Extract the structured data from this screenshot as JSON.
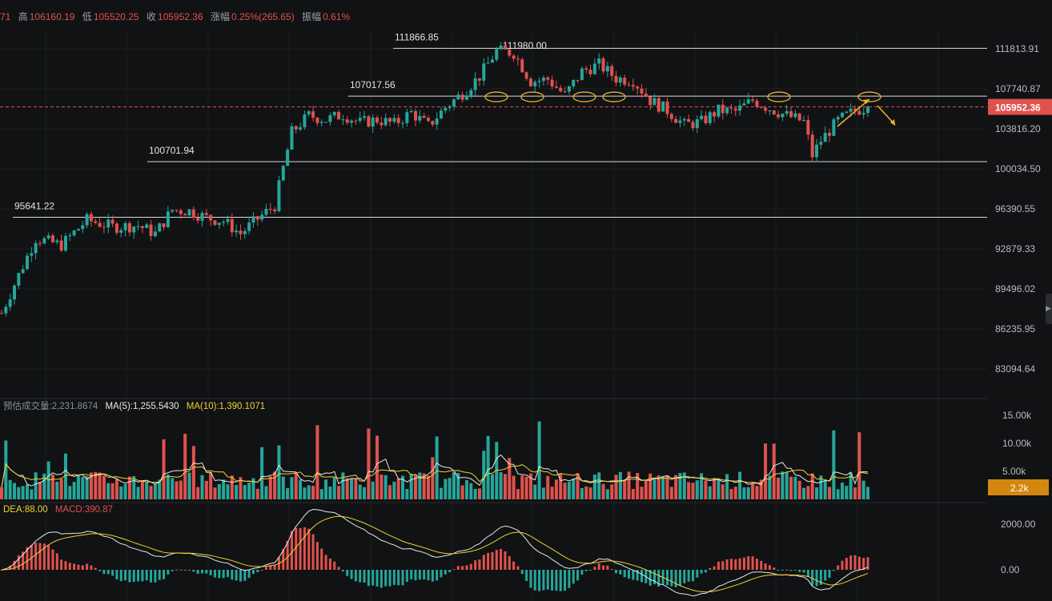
{
  "header": {
    "fragment": "71",
    "high_label": "高",
    "high": "106160.19",
    "low_label": "低",
    "low": "105520.25",
    "close_label": "收",
    "close": "105952.36",
    "change_label": "涨幅",
    "change": "0.25%(265.65)",
    "amplitude_label": "振幅",
    "amplitude": "0.61%"
  },
  "volume_legend": {
    "est_label": "预估成交量:2,231.8674",
    "ma5": "MA(5):1,255.5430",
    "ma10": "MA(10):1,390.1071"
  },
  "macd_legend": {
    "dea": "DEA:88.00",
    "macd": "MACD:390.87"
  },
  "colors": {
    "up": "#26a69a",
    "down": "#e0524e",
    "ma5": "#e8e8e8",
    "ma10": "#f0d232",
    "annotation": "#f0b429",
    "price_tag": "#e0524e",
    "volume_tag": "#d4870f"
  },
  "chart_data": {
    "type": "candlestick",
    "price_axis": {
      "ticks": [
        "111813.91",
        "107740.87",
        "103816.20",
        "100034.50",
        "96390.55",
        "92879.33",
        "89496.02",
        "86235.95",
        "83094.64"
      ],
      "current_price": "105952.36",
      "log_scale": true
    },
    "volume_axis": {
      "ticks": [
        "15.00k",
        "10.00k",
        "5.00k"
      ],
      "current": "2.2k"
    },
    "macd_axis": {
      "ticks": [
        "2000.00",
        "0.00"
      ]
    },
    "levels": [
      {
        "label": "111866.85",
        "value": 111866.85
      },
      {
        "label": "107017.56",
        "value": 107017.56
      },
      {
        "label": "100701.94",
        "value": 100701.94
      },
      {
        "label": "95641.22",
        "value": 95641.22
      }
    ],
    "peak_label": "111980.00",
    "price_path": [
      [
        0,
        87500
      ],
      [
        8,
        93800
      ],
      [
        14,
        93200
      ],
      [
        20,
        95400
      ],
      [
        26,
        94800
      ],
      [
        32,
        94900
      ],
      [
        36,
        94200
      ],
      [
        40,
        96300
      ],
      [
        44,
        96200
      ],
      [
        48,
        95600
      ],
      [
        52,
        95300
      ],
      [
        56,
        94200
      ],
      [
        60,
        95500
      ],
      [
        64,
        96700
      ],
      [
        68,
        103500
      ],
      [
        72,
        105100
      ],
      [
        76,
        104700
      ],
      [
        80,
        105200
      ],
      [
        84,
        104400
      ],
      [
        88,
        104700
      ],
      [
        92,
        104300
      ],
      [
        96,
        105400
      ],
      [
        100,
        104100
      ],
      [
        104,
        105900
      ],
      [
        108,
        107300
      ],
      [
        112,
        109000
      ],
      [
        116,
        111600
      ],
      [
        120,
        111400
      ],
      [
        124,
        108500
      ],
      [
        128,
        108700
      ],
      [
        132,
        107100
      ],
      [
        136,
        109500
      ],
      [
        140,
        110200
      ],
      [
        144,
        108800
      ],
      [
        148,
        108600
      ],
      [
        152,
        106600
      ],
      [
        156,
        105600
      ],
      [
        160,
        104200
      ],
      [
        164,
        104500
      ],
      [
        168,
        105600
      ],
      [
        172,
        105500
      ],
      [
        176,
        106600
      ],
      [
        180,
        105800
      ],
      [
        184,
        105100
      ],
      [
        188,
        104500
      ],
      [
        190,
        101300
      ],
      [
        192,
        102700
      ],
      [
        196,
        104600
      ],
      [
        200,
        105600
      ],
      [
        203,
        105952
      ]
    ],
    "annotations": [
      "ellipses at tests of 107017.56",
      "arrow up then arrow down at the last test"
    ]
  }
}
